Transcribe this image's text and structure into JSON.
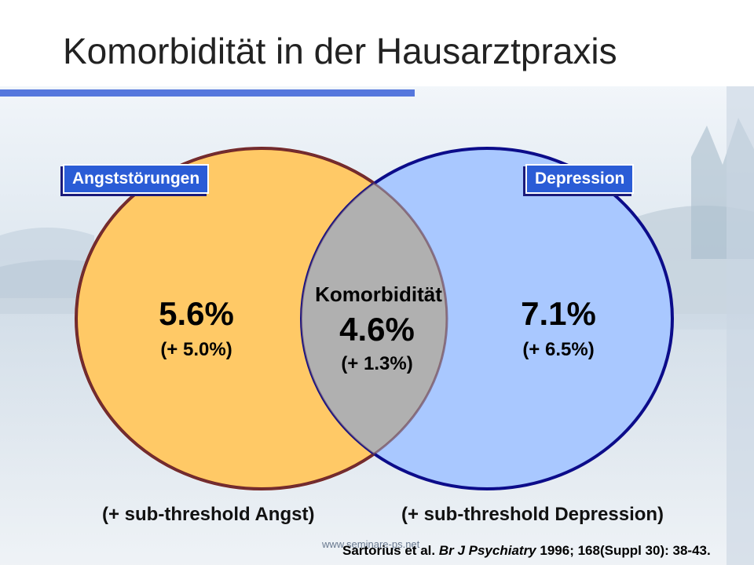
{
  "slide": {
    "title": "Komorbidität in der Hausarztpraxis"
  },
  "venn": {
    "left": {
      "label": "Angststörungen",
      "value": "5.6%",
      "extra": "(+ 5.0%)",
      "footer": "(+ sub-threshold Angst)",
      "fill": "#ffc966",
      "stroke": "#7a1a10"
    },
    "right": {
      "label": "Depression",
      "value": "7.1%",
      "extra": "(+ 6.5%)",
      "footer": "(+ sub-threshold Depression)",
      "fill": "#a9c8ff",
      "stroke": "#0c0c8a"
    },
    "overlap": {
      "label": "Komorbidität",
      "value": "4.6%",
      "extra": "(+ 1.3%)",
      "fill": "#b0b0b0"
    }
  },
  "citation": {
    "authors": "Sartorius et al.",
    "journal": "Br J Psychiatry",
    "details": "1996; 168(Suppl 30): 38-43."
  },
  "watermark": "www.seminare-ps.net",
  "colors": {
    "label_box": "#2a5cd6",
    "title_bar": "#5577dd"
  }
}
